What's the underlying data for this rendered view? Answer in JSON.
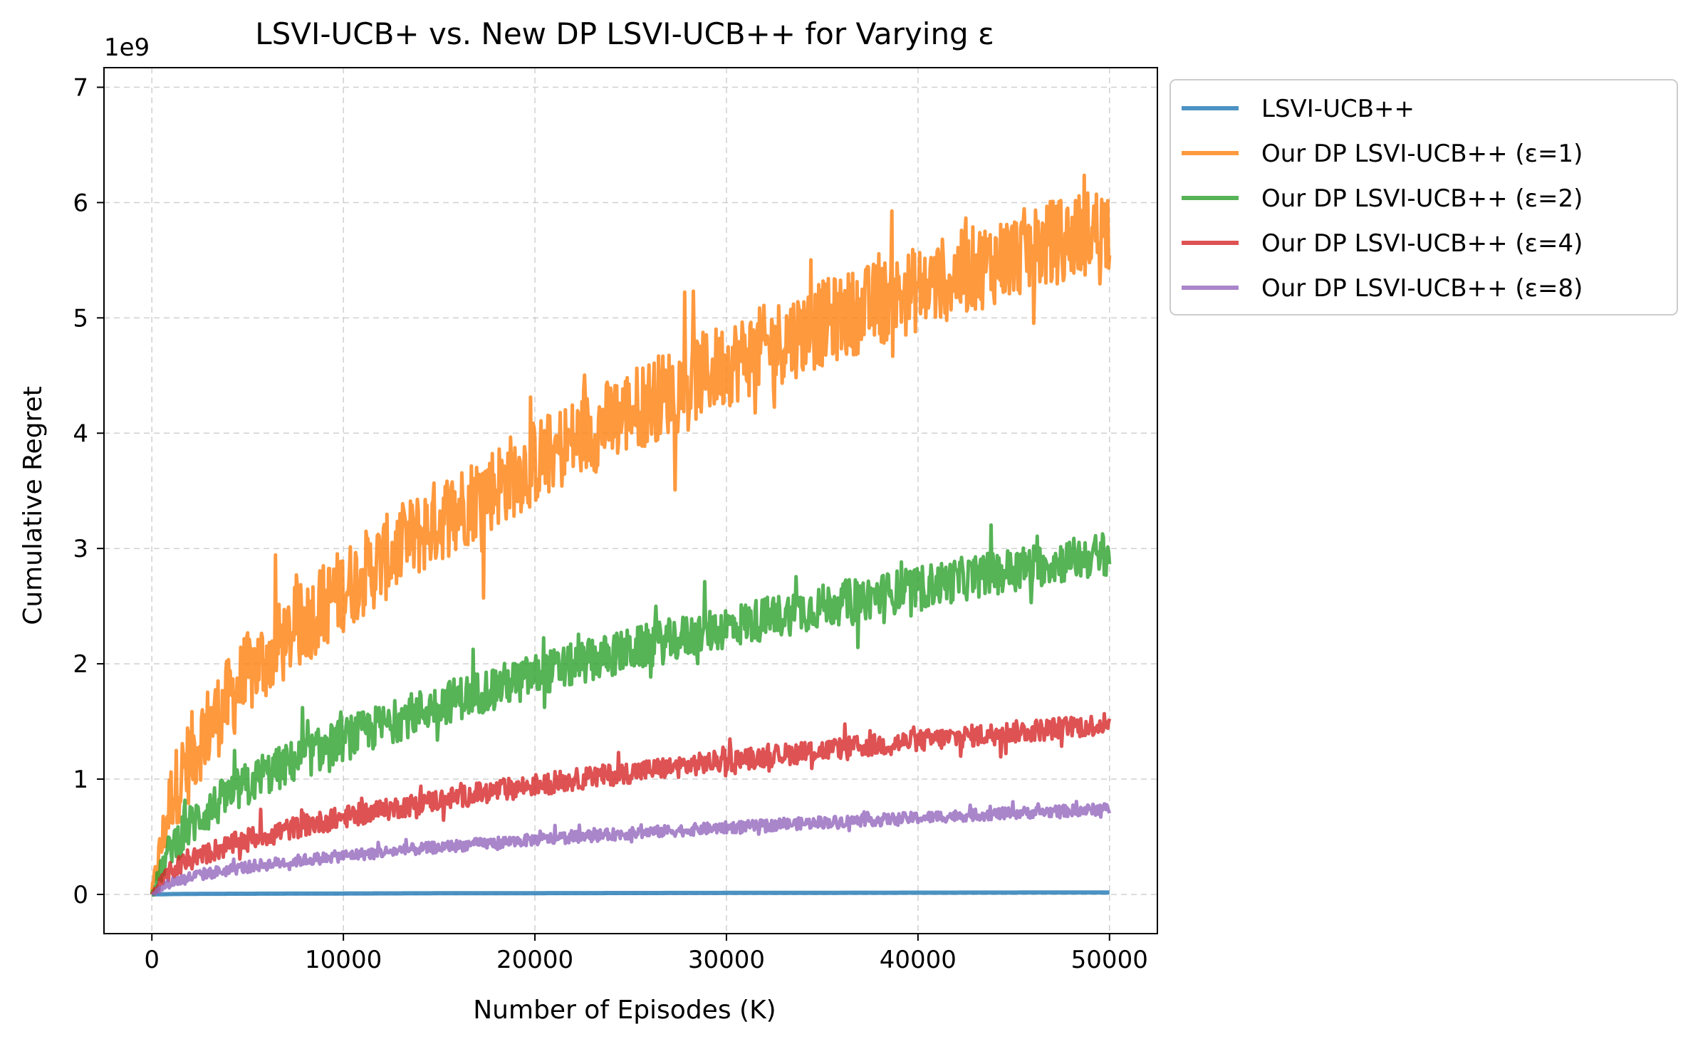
{
  "chart_data": {
    "type": "line",
    "title": "LSVI-UCB+ vs. New DP LSVI-UCB++ for Varying ε",
    "xlabel": "Number of Episodes (K)",
    "ylabel": "Cumulative Regret",
    "y_multiplier_label": "1e9",
    "xlim": [
      -2500,
      52500
    ],
    "ylim": [
      -0.34,
      7.17
    ],
    "xticks": [
      0,
      10000,
      20000,
      30000,
      40000,
      50000
    ],
    "xtick_labels": [
      "0",
      "10000",
      "20000",
      "30000",
      "40000",
      "50000"
    ],
    "yticks": [
      0,
      1,
      2,
      3,
      4,
      5,
      6,
      7
    ],
    "ytick_labels": [
      "0",
      "1",
      "2",
      "3",
      "4",
      "5",
      "6",
      "7"
    ],
    "grid": true,
    "legend_position": "outside-upper-right",
    "x": [
      0,
      1000,
      2500,
      5000,
      7500,
      10000,
      15000,
      20000,
      25000,
      30000,
      35000,
      40000,
      45000,
      50000
    ],
    "series": [
      {
        "name": "LSVI-UCB++",
        "color": "#1f77b4",
        "values": [
          0.0,
          0.003,
          0.005,
          0.006,
          0.007,
          0.008,
          0.01,
          0.011,
          0.012,
          0.013,
          0.014,
          0.015,
          0.016,
          0.017
        ],
        "noise_band": 0.0
      },
      {
        "name": "Our DP LSVI-UCB++ (ε=1)",
        "color": "#ff7f0e",
        "values": [
          0.0,
          0.85,
          1.35,
          1.9,
          2.3,
          2.65,
          3.25,
          3.75,
          4.2,
          4.6,
          4.95,
          5.25,
          5.55,
          5.8
        ],
        "noise_band": 0.75
      },
      {
        "name": "Our DP LSVI-UCB++ (ε=2)",
        "color": "#2ca02c",
        "values": [
          0.0,
          0.42,
          0.68,
          0.96,
          1.16,
          1.34,
          1.65,
          1.9,
          2.12,
          2.32,
          2.5,
          2.66,
          2.82,
          2.96
        ],
        "noise_band": 0.38
      },
      {
        "name": "Our DP LSVI-UCB++ (ε=4)",
        "color": "#d62728",
        "values": [
          0.0,
          0.21,
          0.34,
          0.48,
          0.58,
          0.67,
          0.82,
          0.95,
          1.06,
          1.16,
          1.25,
          1.33,
          1.41,
          1.48
        ],
        "noise_band": 0.19
      },
      {
        "name": "Our DP LSVI-UCB++ (ε=8)",
        "color": "#9467bd",
        "values": [
          0.0,
          0.105,
          0.17,
          0.24,
          0.29,
          0.335,
          0.41,
          0.475,
          0.53,
          0.58,
          0.625,
          0.665,
          0.705,
          0.74
        ],
        "noise_band": 0.1
      }
    ]
  }
}
